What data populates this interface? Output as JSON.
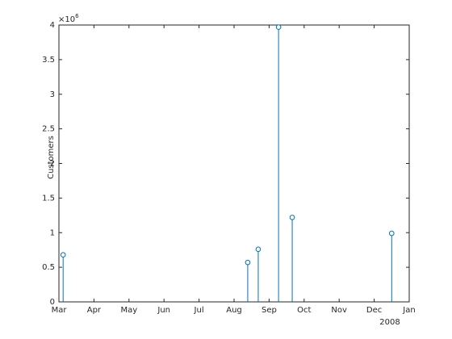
{
  "chart_data": {
    "type": "stem",
    "ylabel": "Customers",
    "y_multiplier": {
      "base": "×10",
      "exponent": "6"
    },
    "x_year_label": "2008",
    "x": [
      3.12,
      8.39,
      8.69,
      9.27,
      9.66,
      12.5
    ],
    "values": [
      0.68,
      0.57,
      0.76,
      3.97,
      1.22,
      0.99
    ],
    "color": "#0072bd",
    "xlim": [
      3,
      13
    ],
    "xticks": [
      {
        "value": 3,
        "label": "Mar"
      },
      {
        "value": 4,
        "label": "Apr"
      },
      {
        "value": 5,
        "label": "May"
      },
      {
        "value": 6,
        "label": "Jun"
      },
      {
        "value": 7,
        "label": "Jul"
      },
      {
        "value": 8,
        "label": "Aug"
      },
      {
        "value": 9,
        "label": "Sep"
      },
      {
        "value": 10,
        "label": "Oct"
      },
      {
        "value": 11,
        "label": "Nov"
      },
      {
        "value": 12,
        "label": "Dec"
      },
      {
        "value": 13,
        "label": "Jan"
      }
    ],
    "ylim": [
      0,
      4
    ],
    "yticks": [
      0,
      0.5,
      1,
      1.5,
      2,
      2.5,
      3,
      3.5,
      4
    ],
    "grid": false
  }
}
